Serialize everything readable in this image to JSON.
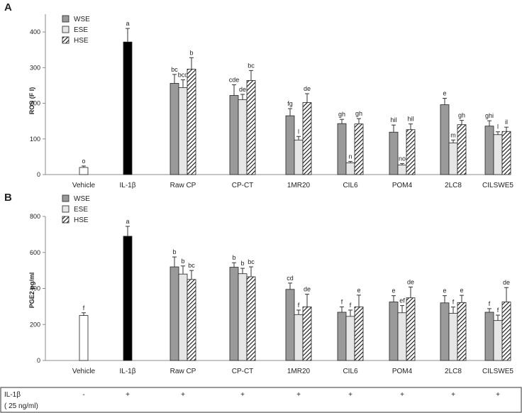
{
  "categories": [
    "Vehicle",
    "IL-1β",
    "Raw CP",
    "CP-CT",
    "1MR20",
    "CIL6",
    "POM4",
    "2LC8",
    "CILSWE5"
  ],
  "colors": {
    "WSE": "#9a9a9a",
    "ESE": "#e6e6e6",
    "HSE": "#ffffff",
    "vehicle": "#ffffff",
    "il1b": "#000000",
    "axis": "#8c8c8c"
  },
  "chart_data": [
    {
      "type": "bar",
      "panel_label": "A",
      "title": "",
      "xlabel": "",
      "ylabel": "ROS (F I)",
      "ylim": [
        0,
        450
      ],
      "yticks": [
        0,
        100,
        200,
        300,
        400
      ],
      "legend": [
        "WSE",
        "ESE",
        "HSE"
      ],
      "legend_position": "top-left",
      "controls": [
        {
          "category": "Vehicle",
          "kind": "vehicle",
          "value": 20,
          "error": 4,
          "sig": "o"
        },
        {
          "category": "IL-1β",
          "kind": "il1b",
          "value": 372,
          "error": 38,
          "sig": "a"
        }
      ],
      "series": [
        {
          "name": "WSE",
          "values": [
            256,
            222,
            165,
            143,
            119,
            196,
            136
          ],
          "errors": [
            25,
            30,
            20,
            12,
            20,
            18,
            15
          ],
          "sig": [
            "bc",
            "cde",
            "fg",
            "gh",
            "hil",
            "e",
            "ghi"
          ]
        },
        {
          "name": "ESE",
          "values": [
            244,
            210,
            97,
            33,
            27,
            89,
            112
          ],
          "errors": [
            22,
            15,
            10,
            4,
            4,
            8,
            8
          ],
          "sig": [
            "bcd",
            "de",
            "l",
            "n",
            "no",
            "m",
            "l"
          ]
        },
        {
          "name": "HSE",
          "values": [
            296,
            264,
            202,
            142,
            126,
            140,
            121
          ],
          "errors": [
            32,
            28,
            25,
            15,
            16,
            12,
            12
          ],
          "sig": [
            "b",
            "bc",
            "de",
            "gh",
            "hil",
            "gh",
            "il"
          ]
        }
      ]
    },
    {
      "type": "bar",
      "panel_label": "B",
      "title": "",
      "xlabel": "",
      "ylabel": "PGE2 pg/ml",
      "ylim": [
        0,
        800
      ],
      "yticks": [
        0,
        200,
        400,
        600,
        800
      ],
      "legend": [
        "WSE",
        "ESE",
        "HSE"
      ],
      "legend_position": "top-left",
      "controls": [
        {
          "category": "Vehicle",
          "kind": "vehicle",
          "value": 250,
          "error": 15,
          "sig": "f"
        },
        {
          "category": "IL-1β",
          "kind": "il1b",
          "value": 690,
          "error": 55,
          "sig": "a"
        }
      ],
      "series": [
        {
          "name": "WSE",
          "values": [
            520,
            518,
            395,
            268,
            325,
            320,
            268
          ],
          "errors": [
            55,
            25,
            35,
            30,
            35,
            40,
            20
          ],
          "sig": [
            "b",
            "b",
            "cd",
            "f",
            "e",
            "e",
            "f"
          ]
        },
        {
          "name": "ESE",
          "values": [
            480,
            482,
            255,
            245,
            265,
            262,
            222
          ],
          "errors": [
            45,
            30,
            25,
            35,
            40,
            35,
            30
          ],
          "sig": [
            "b",
            "b",
            "f",
            "f",
            "ef",
            "f",
            "f"
          ]
        },
        {
          "name": "HSE",
          "values": [
            450,
            465,
            298,
            298,
            348,
            322,
            325
          ],
          "errors": [
            50,
            55,
            70,
            65,
            60,
            40,
            80
          ],
          "sig": [
            "bc",
            "bc",
            "de",
            "e",
            "de",
            "e",
            "de"
          ]
        }
      ]
    }
  ],
  "treatment_table": {
    "row_label": "IL-1β",
    "row_sublabel": "( 25 ng/ml)",
    "marks": [
      "-",
      "+",
      "+",
      "+",
      "+",
      "+",
      "+",
      "+",
      "+"
    ]
  }
}
